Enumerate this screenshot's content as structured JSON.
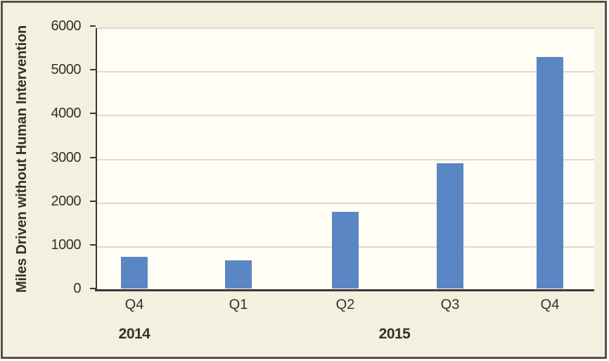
{
  "figure": {
    "border_color": "#54534b",
    "background_color": "#f4f0df",
    "plot_background_color": "#fffdf4"
  },
  "chart_data": {
    "type": "bar",
    "title": "",
    "ylabel": "Miles Driven without Human Intervention",
    "xlabel": "",
    "categories": [
      "Q4",
      "Q1",
      "Q2",
      "Q3",
      "Q4"
    ],
    "values": [
      720,
      650,
      1760,
      2860,
      5300
    ],
    "year_groups": [
      {
        "label": "2014",
        "from": 0,
        "to": 0
      },
      {
        "label": "2015",
        "from": 1,
        "to": 4
      }
    ],
    "ylim": [
      0,
      6000
    ],
    "yticks": [
      0,
      1000,
      2000,
      3000,
      4000,
      5000,
      6000
    ],
    "grid": true,
    "legend": false,
    "bar_color": "#5b86c4",
    "gridline_color": "#dcd9cf",
    "axis_color": "#3a3830",
    "text_color": "#33322b"
  }
}
